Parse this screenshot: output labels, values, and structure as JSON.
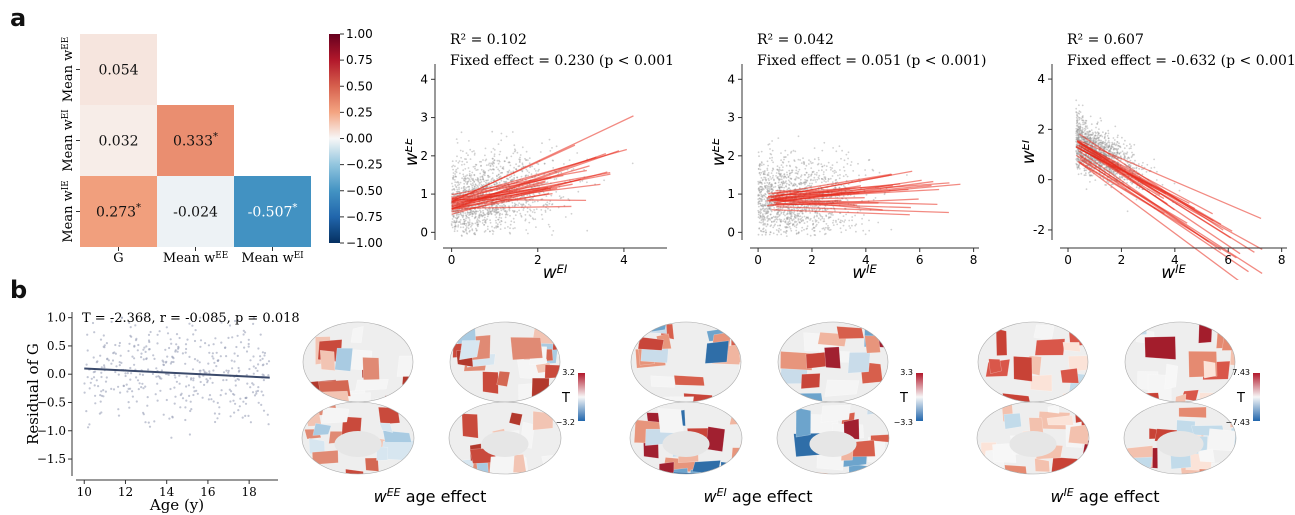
{
  "panels": {
    "a": "a",
    "b": "b"
  },
  "heatmap": {
    "rows": [
      "Mean w^EE",
      "Mean w^EI",
      "Mean w^IE"
    ],
    "cols": [
      "G",
      "Mean w^EE",
      "Mean w^EI"
    ],
    "cells": [
      {
        "r": 0,
        "c": 0,
        "value": 0.054,
        "label": "0.054",
        "sig": false
      },
      {
        "r": 1,
        "c": 0,
        "value": 0.032,
        "label": "0.032",
        "sig": false
      },
      {
        "r": 1,
        "c": 1,
        "value": 0.333,
        "label": "0.333",
        "sig": true
      },
      {
        "r": 2,
        "c": 0,
        "value": 0.273,
        "label": "0.273",
        "sig": true
      },
      {
        "r": 2,
        "c": 1,
        "value": -0.024,
        "label": "-0.024",
        "sig": false
      },
      {
        "r": 2,
        "c": 2,
        "value": -0.507,
        "label": "-0.507",
        "sig": true
      }
    ],
    "colorbar_ticks": [
      "1.00",
      "0.75",
      "0.50",
      "0.25",
      "0.00",
      "−0.25",
      "−0.50",
      "−0.75",
      "−1.00"
    ]
  },
  "scatters": [
    {
      "r2": "R² = 0.102",
      "fe": "Fixed effect = 0.230 (p < 0.001)",
      "xlabel": "w",
      "xsup": "EI",
      "ylabel": "w",
      "ysup": "EE",
      "xlim": [
        -0.2,
        5.0
      ],
      "ylim": [
        -0.2,
        4.4
      ],
      "xticks": [
        0,
        2,
        4
      ],
      "yticks": [
        0,
        1,
        2,
        3,
        4
      ],
      "slope": 0.23,
      "intercept": 0.72
    },
    {
      "r2": "R² = 0.042",
      "fe": "Fixed effect = 0.051 (p < 0.001)",
      "xlabel": "w",
      "xsup": "IE",
      "ylabel": "w",
      "ysup": "EE",
      "xlim": [
        -0.3,
        8.2
      ],
      "ylim": [
        -0.2,
        4.4
      ],
      "xticks": [
        0,
        2,
        4,
        6,
        8
      ],
      "yticks": [
        0,
        1,
        2,
        3,
        4
      ],
      "slope": 0.051,
      "intercept": 0.85
    },
    {
      "r2": "R² = 0.607",
      "fe": "Fixed effect = -0.632 (p < 0.001)",
      "xlabel": "w",
      "xsup": "IE",
      "ylabel": "w",
      "ysup": "EI",
      "xlim": [
        -0.3,
        8.2
      ],
      "ylim": [
        -2.4,
        4.6
      ],
      "xticks": [
        0,
        2,
        4,
        6,
        8
      ],
      "yticks": [
        -2,
        0,
        2,
        4
      ],
      "slope": -0.632,
      "intercept": 1.6
    }
  ],
  "age_plot": {
    "stat": "T = -2.368, r = -0.085, p = 0.018",
    "xlabel": "Age (y)",
    "ylabel": "Residual of G",
    "xticks": [
      10,
      12,
      14,
      16,
      18
    ],
    "yticks": [
      "1.0",
      "0.5",
      "0.0",
      "−0.5",
      "−1.0",
      "−1.5"
    ],
    "xlim": [
      9.6,
      19.4
    ],
    "ylim": [
      -1.8,
      1.1
    ],
    "fit": {
      "x0": 10,
      "y0": 0.1,
      "x1": 19,
      "y1": -0.06
    }
  },
  "brains": [
    {
      "title_var": "w",
      "title_sup": "EE",
      "title_rest": " age effect",
      "cb_max": "3.2",
      "cb_min": "−3.2",
      "cb_label": "T"
    },
    {
      "title_var": "w",
      "title_sup": "EI",
      "title_rest": " age effect",
      "cb_max": "3.3",
      "cb_min": "−3.3",
      "cb_label": "T"
    },
    {
      "title_var": "w",
      "title_sup": "IE",
      "title_rest": " age effect",
      "cb_max": "7.43",
      "cb_min": "−7.43",
      "cb_label": "T"
    }
  ],
  "colors": {
    "red": "#b2182b",
    "blue": "#2166ac",
    "gray": "#8a8a8a",
    "scatter_red": "#e8291c",
    "fit": "#3b4a6b"
  }
}
